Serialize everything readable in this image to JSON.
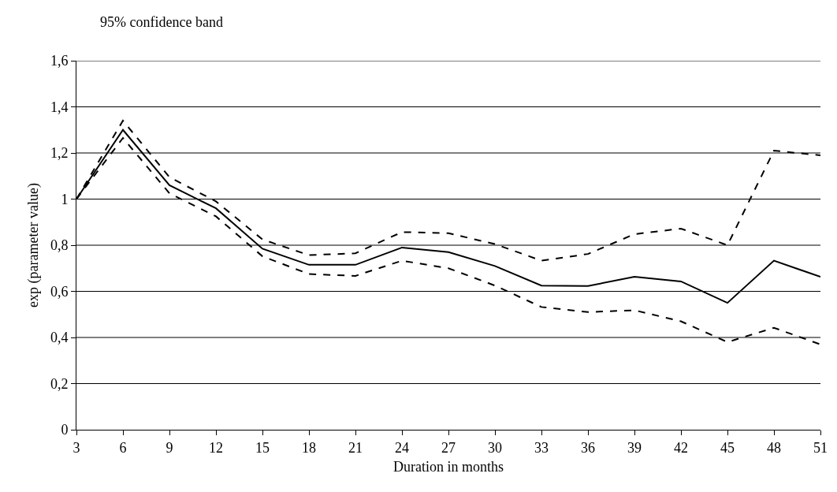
{
  "chart_data": {
    "type": "line",
    "xlabel": "Duration in months",
    "ylabel": "exp (parameter value)",
    "annotations": [
      "95% confidence band"
    ],
    "x": [
      3,
      6,
      9,
      12,
      15,
      18,
      21,
      24,
      27,
      30,
      33,
      36,
      39,
      42,
      45,
      48,
      51
    ],
    "series": [
      {
        "color": "#000000",
        "line_style": "solid",
        "values": [
          1.0,
          1.3,
          1.06,
          0.96,
          0.785,
          0.715,
          0.715,
          0.79,
          0.77,
          0.71,
          0.625,
          0.623,
          0.663,
          0.643,
          0.55,
          0.733,
          0.663
        ]
      },
      {
        "color": "#000000",
        "line_style": "dashed",
        "values": [
          1.0,
          1.34,
          1.095,
          0.99,
          0.825,
          0.757,
          0.765,
          0.857,
          0.852,
          0.805,
          0.733,
          0.762,
          0.848,
          0.872,
          0.8,
          1.21,
          1.19
        ]
      },
      {
        "color": "#000000",
        "line_style": "dashed",
        "values": [
          1.0,
          1.265,
          1.025,
          0.925,
          0.752,
          0.675,
          0.667,
          0.733,
          0.7,
          0.625,
          0.532,
          0.51,
          0.518,
          0.47,
          0.38,
          0.442,
          0.37
        ]
      }
    ],
    "xlim": [
      3,
      51
    ],
    "xticks": [
      3,
      6,
      9,
      12,
      15,
      18,
      21,
      24,
      27,
      30,
      33,
      36,
      39,
      42,
      45,
      48,
      51
    ],
    "ylim": [
      0,
      1.6
    ],
    "yticks": [
      {
        "value": 0,
        "label": "0"
      },
      {
        "value": 0.2,
        "label": "0,2"
      },
      {
        "value": 0.4,
        "label": "0,4"
      },
      {
        "value": 0.6,
        "label": "0,6"
      },
      {
        "value": 0.8,
        "label": "0,8"
      },
      {
        "value": 1,
        "label": "1"
      },
      {
        "value": 1.2,
        "label": "1,2"
      },
      {
        "value": 1.4,
        "label": "1,4"
      },
      {
        "value": 1.6,
        "label": "1,6"
      }
    ],
    "grid": "y",
    "marker": "none"
  }
}
